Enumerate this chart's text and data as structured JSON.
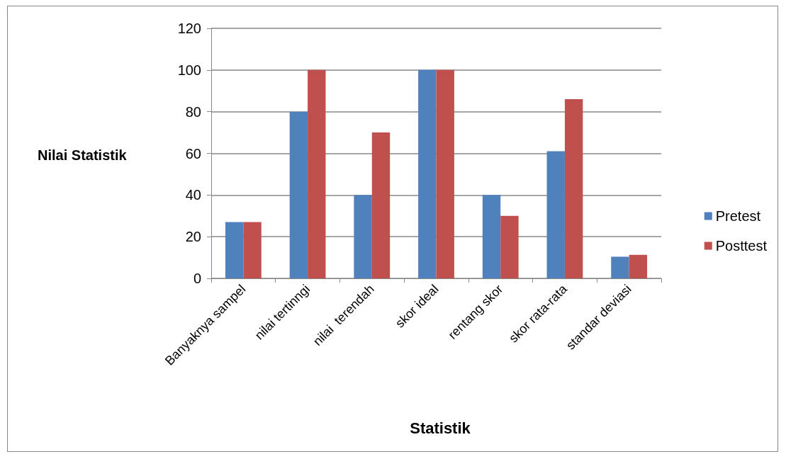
{
  "chart_data": {
    "type": "bar",
    "xlabel": "Statistik",
    "ylabel": "Nilai Statistik",
    "categories": [
      "Banyaknya sampel",
      "nilai tertinngi",
      "nilai  terendah",
      "skor ideal",
      "rentang skor",
      "skor rata-rata",
      "standar deviasi"
    ],
    "series": [
      {
        "name": "Pretest",
        "color": "#4f81bd",
        "values": [
          27,
          80,
          40,
          100,
          40,
          61,
          10.4
        ]
      },
      {
        "name": "Posttest",
        "color": "#c0504d",
        "values": [
          27,
          100,
          70,
          100,
          30,
          86,
          11.3
        ]
      }
    ],
    "ylim": [
      0,
      120
    ],
    "yticks": [
      0,
      20,
      40,
      60,
      80,
      100,
      120
    ],
    "grid": "y",
    "legend": "right"
  }
}
